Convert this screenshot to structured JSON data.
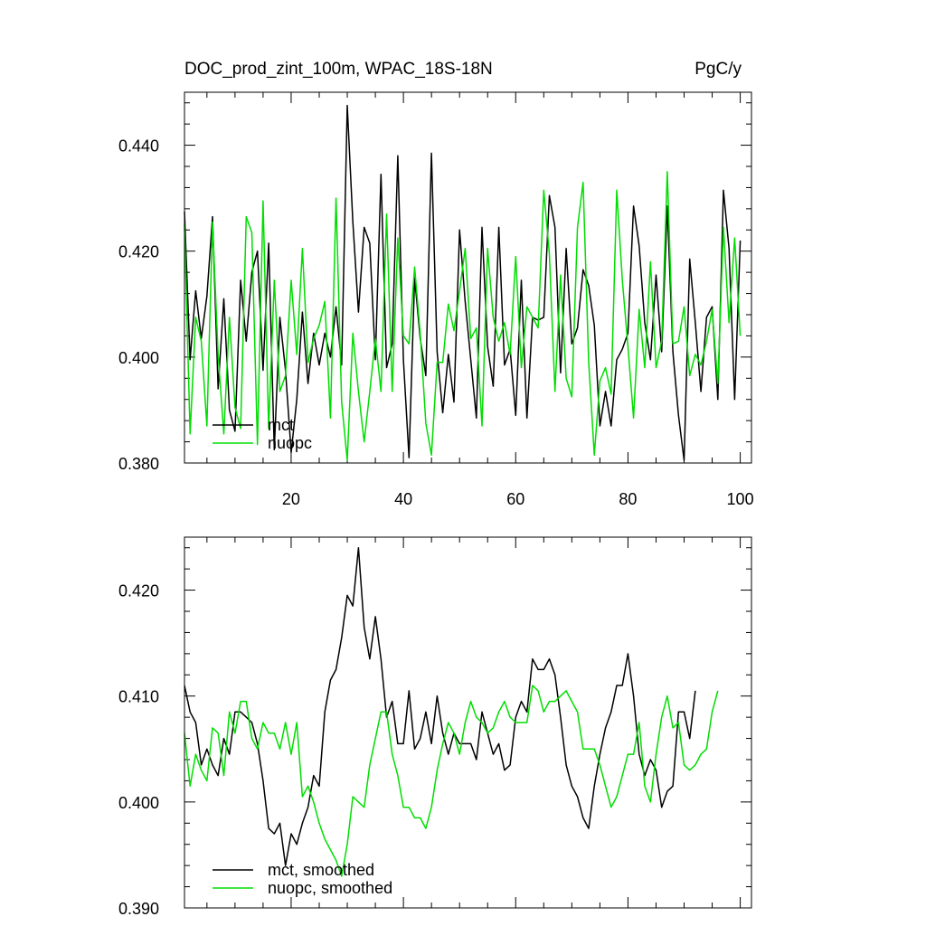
{
  "chart_data": [
    {
      "type": "line",
      "title": "DOC_prod_zint_100m, WPAC_18S-18N",
      "units": "PgC/y",
      "xlim": [
        1,
        102
      ],
      "ylim": [
        0.38,
        0.45
      ],
      "x_ticks": [
        20,
        40,
        60,
        80,
        100
      ],
      "y_ticks": [
        0.38,
        0.4,
        0.42,
        0.44
      ],
      "y_tick_labels": [
        "0.380",
        "0.400",
        "0.420",
        "0.440"
      ],
      "legend_position": "bottom-left",
      "x_start": 1,
      "series": [
        {
          "name": "mct",
          "color": "#000000",
          "values": [
            0.4275,
            0.3995,
            0.4125,
            0.4035,
            0.4115,
            0.4265,
            0.394,
            0.411,
            0.39,
            0.386,
            0.4145,
            0.403,
            0.416,
            0.42,
            0.3975,
            0.4215,
            0.3825,
            0.4075,
            0.3975,
            0.382,
            0.392,
            0.4085,
            0.395,
            0.4045,
            0.3985,
            0.4045,
            0.4,
            0.4095,
            0.3985,
            0.4475,
            0.4255,
            0.4085,
            0.4245,
            0.4215,
            0.3995,
            0.4345,
            0.398,
            0.4025,
            0.438,
            0.3995,
            0.381,
            0.415,
            0.4035,
            0.3965,
            0.4385,
            0.401,
            0.3895,
            0.4005,
            0.3915,
            0.424,
            0.4105,
            0.3995,
            0.3885,
            0.4245,
            0.402,
            0.3945,
            0.4245,
            0.3985,
            0.4015,
            0.389,
            0.4145,
            0.3885,
            0.4075,
            0.407,
            0.4075,
            0.4305,
            0.4245,
            0.397,
            0.4205,
            0.4025,
            0.4055,
            0.4165,
            0.4135,
            0.406,
            0.387,
            0.3935,
            0.387,
            0.3995,
            0.4015,
            0.4045,
            0.4285,
            0.421,
            0.4065,
            0.3995,
            0.4155,
            0.401,
            0.4285,
            0.401,
            0.389,
            0.3805,
            0.4185,
            0.4065,
            0.3935,
            0.4075,
            0.4095,
            0.392,
            0.4315,
            0.4205,
            0.392,
            0.422
          ]
        },
        {
          "name": "nuopc",
          "color": "#00dd00",
          "values": [
            0.425,
            0.3855,
            0.4075,
            0.403,
            0.387,
            0.4255,
            0.4005,
            0.3855,
            0.4075,
            0.3905,
            0.3865,
            0.4265,
            0.4235,
            0.3835,
            0.4295,
            0.3865,
            0.4145,
            0.3935,
            0.3965,
            0.4145,
            0.4005,
            0.4205,
            0.399,
            0.4035,
            0.406,
            0.4105,
            0.3885,
            0.43,
            0.3915,
            0.3805,
            0.4045,
            0.3935,
            0.384,
            0.3935,
            0.4035,
            0.3935,
            0.427,
            0.3935,
            0.4225,
            0.404,
            0.4025,
            0.417,
            0.4045,
            0.3875,
            0.3815,
            0.399,
            0.399,
            0.41,
            0.405,
            0.4125,
            0.4205,
            0.4035,
            0.4055,
            0.387,
            0.4205,
            0.4075,
            0.403,
            0.4065,
            0.4005,
            0.419,
            0.398,
            0.4095,
            0.4075,
            0.4055,
            0.4315,
            0.4195,
            0.3935,
            0.4155,
            0.396,
            0.3925,
            0.4245,
            0.433,
            0.399,
            0.3815,
            0.3955,
            0.398,
            0.393,
            0.4315,
            0.4145,
            0.402,
            0.3885,
            0.409,
            0.398,
            0.418,
            0.398,
            0.403,
            0.435,
            0.4025,
            0.403,
            0.4095,
            0.3965,
            0.4005,
            0.3985,
            0.403,
            0.409,
            0.395,
            0.4245,
            0.4065,
            0.4225,
            0.404
          ]
        }
      ]
    },
    {
      "type": "line",
      "title": "",
      "xlim": [
        1,
        102
      ],
      "ylim": [
        0.39,
        0.425
      ],
      "x_ticks": [
        20,
        40,
        60,
        80,
        100
      ],
      "y_ticks": [
        0.39,
        0.4,
        0.41,
        0.42
      ],
      "y_tick_labels": [
        "0.390",
        "0.400",
        "0.410",
        "0.420"
      ],
      "legend_position": "bottom-left",
      "x_start": 1,
      "series": [
        {
          "name": "mct, smoothed",
          "color": "#000000",
          "values": [
            0.411,
            0.4085,
            0.4075,
            0.4035,
            0.405,
            0.4035,
            0.4025,
            0.406,
            0.4045,
            0.4085,
            0.4085,
            0.408,
            0.4075,
            0.4055,
            0.402,
            0.3975,
            0.397,
            0.398,
            0.394,
            0.397,
            0.396,
            0.398,
            0.3995,
            0.4025,
            0.4015,
            0.4085,
            0.4115,
            0.4125,
            0.4155,
            0.4195,
            0.4185,
            0.424,
            0.4165,
            0.4135,
            0.4175,
            0.4135,
            0.408,
            0.4095,
            0.4055,
            0.4055,
            0.4105,
            0.405,
            0.406,
            0.4085,
            0.4055,
            0.41,
            0.4065,
            0.4045,
            0.4065,
            0.4055,
            0.4055,
            0.4055,
            0.404,
            0.4085,
            0.4065,
            0.4045,
            0.4055,
            0.403,
            0.4035,
            0.408,
            0.4095,
            0.4085,
            0.4135,
            0.4125,
            0.4125,
            0.4135,
            0.412,
            0.408,
            0.4035,
            0.4015,
            0.4005,
            0.3985,
            0.3975,
            0.4015,
            0.4045,
            0.407,
            0.4085,
            0.411,
            0.411,
            0.414,
            0.41,
            0.4045,
            0.4025,
            0.404,
            0.403,
            0.3995,
            0.401,
            0.4015,
            0.4085,
            0.4085,
            0.406,
            0.4105
          ]
        },
        {
          "name": "nuopc, smoothed",
          "color": "#00dd00",
          "values": [
            0.4065,
            0.4015,
            0.4045,
            0.403,
            0.402,
            0.407,
            0.4065,
            0.4025,
            0.4085,
            0.4065,
            0.4095,
            0.4095,
            0.406,
            0.405,
            0.4075,
            0.4065,
            0.4065,
            0.405,
            0.4075,
            0.4045,
            0.4075,
            0.4005,
            0.4015,
            0.4,
            0.398,
            0.3965,
            0.3955,
            0.3945,
            0.393,
            0.396,
            0.4005,
            0.4,
            0.3995,
            0.4035,
            0.406,
            0.4085,
            0.4085,
            0.4045,
            0.4025,
            0.3995,
            0.3995,
            0.3985,
            0.3985,
            0.3975,
            0.3995,
            0.403,
            0.4055,
            0.4075,
            0.4065,
            0.4045,
            0.4075,
            0.4095,
            0.408,
            0.4075,
            0.4065,
            0.407,
            0.4085,
            0.4095,
            0.408,
            0.4075,
            0.4075,
            0.4075,
            0.411,
            0.4105,
            0.4085,
            0.4095,
            0.4095,
            0.41,
            0.4105,
            0.4095,
            0.4085,
            0.405,
            0.405,
            0.405,
            0.4035,
            0.4015,
            0.3995,
            0.4005,
            0.4025,
            0.4045,
            0.4045,
            0.4075,
            0.4015,
            0.4,
            0.4045,
            0.408,
            0.41,
            0.407,
            0.4075,
            0.4035,
            0.403,
            0.4035,
            0.4045,
            0.405,
            0.4085,
            0.4105
          ]
        }
      ]
    }
  ]
}
